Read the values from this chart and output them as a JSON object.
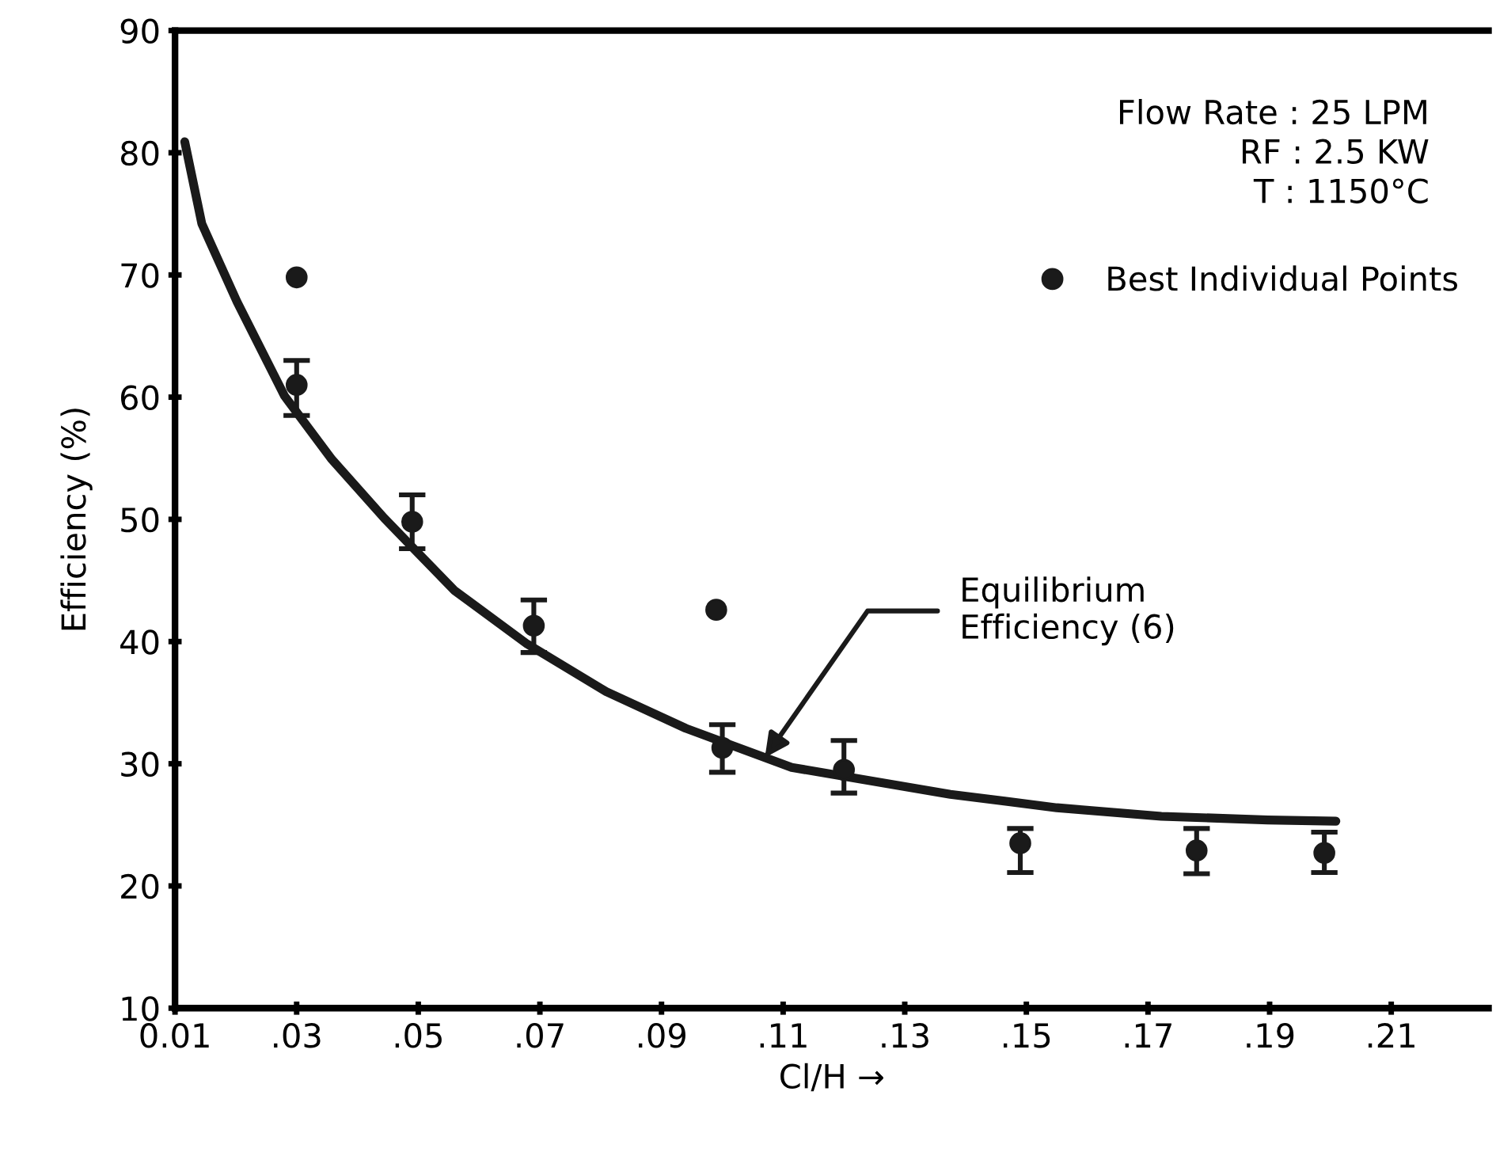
{
  "chart_data": {
    "type": "scatter",
    "xlabel": "Cl/H →",
    "ylabel": "Efficiency (%)",
    "xlim": [
      0.01,
      0.226
    ],
    "ylim": [
      10,
      90
    ],
    "xticks": [
      {
        "value": 0.01,
        "label": "0.01"
      },
      {
        "value": 0.03,
        "label": ".03"
      },
      {
        "value": 0.05,
        "label": ".05"
      },
      {
        "value": 0.07,
        "label": ".07"
      },
      {
        "value": 0.09,
        "label": ".09"
      },
      {
        "value": 0.11,
        "label": ".11"
      },
      {
        "value": 0.13,
        "label": ".13"
      },
      {
        "value": 0.15,
        "label": ".15"
      },
      {
        "value": 0.17,
        "label": ".17"
      },
      {
        "value": 0.19,
        "label": ".19"
      },
      {
        "value": 0.21,
        "label": ".21"
      }
    ],
    "yticks": [
      10,
      20,
      30,
      40,
      50,
      60,
      70,
      80,
      90
    ],
    "grid": false,
    "legend": "top right",
    "marker": "circle",
    "series": [
      {
        "color": "#1a1a1a",
        "x": [
          0.03,
          0.049,
          0.069,
          0.1,
          0.12,
          0.149,
          0.178,
          0.199
        ],
        "values": [
          61.0,
          49.8,
          41.3,
          31.3,
          29.5,
          23.5,
          22.9,
          22.7
        ],
        "errors": [
          [
            58.5,
            63.0
          ],
          [
            47.6,
            52.0
          ],
          [
            39.1,
            43.4
          ],
          [
            29.3,
            33.2
          ],
          [
            27.6,
            31.9
          ],
          [
            21.1,
            24.7
          ],
          [
            21.0,
            24.7
          ],
          [
            21.1,
            24.4
          ]
        ]
      },
      {
        "name": "Best Individual Points",
        "color": "#1a1a1a",
        "x": [
          0.03,
          0.099
        ],
        "values": [
          69.8,
          42.6
        ]
      },
      {
        "type": "line",
        "color": "#1a1a1a",
        "marker": "none",
        "line_style": "solid",
        "x": [
          0.0116,
          0.0144,
          0.0202,
          0.028,
          0.0358,
          0.0444,
          0.0559,
          0.0679,
          0.0809,
          0.094,
          0.1114,
          0.1375,
          0.155,
          0.1722,
          0.1897,
          0.2009
        ],
        "values": [
          80.9,
          74.2,
          67.8,
          60.1,
          54.9,
          50.1,
          44.2,
          39.8,
          35.9,
          32.9,
          29.7,
          27.5,
          26.4,
          25.7,
          25.4,
          25.3
        ]
      }
    ],
    "annotations": [
      "Flow Rate : 25 LPM\nRF : 2.5 KW\nT : 1150°C",
      {
        "text": "Equilibrium\nEfficiency (6)",
        "x": 0.107,
        "y": 30.5
      }
    ]
  }
}
